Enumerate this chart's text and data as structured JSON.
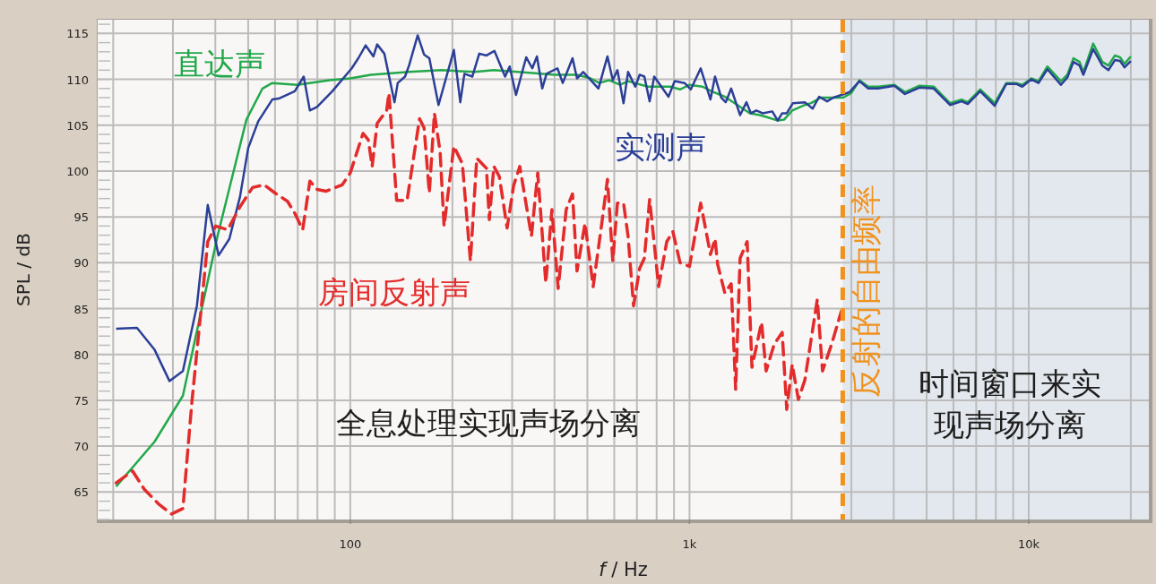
{
  "chart_data": {
    "type": "line",
    "xlabel": "*f* / Hz",
    "ylabel": "SPL / dB",
    "log": "x",
    "grid": true,
    "xlim": [
      18,
      22600
    ],
    "ylim": [
      62,
      116.5
    ],
    "xticks": [
      {
        "value": 100,
        "label": "100"
      },
      {
        "value": 1000,
        "label": "1k"
      },
      {
        "value": 10000,
        "label": "10k"
      }
    ],
    "yticks": [
      65,
      70,
      75,
      80,
      85,
      90,
      95,
      100,
      105,
      110,
      115
    ],
    "bands": [
      {
        "axis": "x",
        "from": 2830,
        "to": 22600,
        "color": "#e3e8ee"
      }
    ],
    "ref_lines": [
      {
        "axis": "x",
        "value": 2830,
        "label": "反射的自由频率",
        "color": "#f0921e",
        "line_style": "dashed"
      }
    ],
    "annotations": [
      "全息处理实现声场分离",
      "时间窗口来实现声场分离"
    ],
    "series": [
      {
        "name": "直达声",
        "color": "#22a84a",
        "line_style": "solid",
        "x": [
          20.4,
          23.7,
          26.5,
          32.1,
          40.6,
          49.4,
          55.1,
          58.9,
          69.8,
          86.9,
          100,
          115,
          149,
          186,
          233,
          265,
          344,
          400,
          466,
          511,
          542,
          580,
          624,
          659,
          754,
          877,
          938,
          1000,
          1092,
          1161,
          1271,
          1410,
          1507,
          1611,
          1682,
          1820,
          1900,
          2008,
          2188,
          2281,
          2438,
          2590,
          2838,
          2999,
          3170,
          3365,
          3597,
          4018,
          4315,
          4764,
          5248,
          5861,
          6339,
          6612,
          7194,
          7937,
          8590,
          9183,
          9572,
          10180,
          10690,
          11350,
          12440,
          13000,
          13550,
          14130,
          14490,
          15490,
          16480,
          17180,
          17950,
          18590,
          19170,
          20000
        ],
        "values": [
          65.6,
          68.4,
          70.5,
          75.5,
          92.9,
          105.6,
          109,
          109.6,
          109.4,
          109.9,
          110.1,
          110.5,
          110.8,
          111,
          110.8,
          111,
          110.7,
          110.5,
          110.5,
          110.1,
          109.6,
          109.9,
          109.4,
          109.8,
          109.2,
          109.2,
          108.9,
          109.4,
          109.2,
          108.7,
          108.1,
          107,
          106.3,
          106.1,
          105.9,
          105.5,
          105.6,
          106.6,
          107.2,
          107.4,
          108,
          108,
          108,
          108.5,
          109.9,
          109.2,
          109.2,
          109.4,
          108.6,
          109.3,
          109.2,
          107.4,
          107.8,
          107.5,
          108.9,
          107.4,
          109.6,
          109.6,
          109.4,
          110.1,
          109.8,
          111.4,
          109.8,
          110.5,
          112.3,
          111.9,
          110.8,
          113.9,
          111.9,
          111.5,
          112.6,
          112.4,
          111.7,
          112.5
        ]
      },
      {
        "name": "实测声",
        "color": "#2b3f97",
        "line_style": "solid",
        "x": [
          20.4,
          23.5,
          26.5,
          29.3,
          32.1,
          35.3,
          38.0,
          40.9,
          44.0,
          47.3,
          50.0,
          53.5,
          58.9,
          61.5,
          68.6,
          72.9,
          76.0,
          79.8,
          88.5,
          101,
          105.6,
          111,
          117,
          120,
          126,
          135,
          138,
          145,
          149,
          158,
          165,
          171,
          182,
          202,
          211,
          217,
          229,
          240,
          252,
          266,
          286,
          295,
          308,
          330,
          344,
          355,
          368,
          379,
          408,
          423,
          452,
          466,
          486,
          539,
          573,
          594,
          613,
          639,
          659,
          692,
          713,
          736,
          763,
          787,
          867,
          904,
          967,
          1009,
          1079,
          1153,
          1189,
          1241,
          1279,
          1327,
          1410,
          1472,
          1517,
          1574,
          1642,
          1754,
          1820,
          1876,
          1935,
          2018,
          2188,
          2307,
          2410,
          2545,
          2655,
          2803,
          2963,
          3170,
          3365,
          3597,
          4018,
          4315,
          4764,
          5248,
          5861,
          6339,
          6612,
          7194,
          7937,
          8590,
          9183,
          9572,
          10180,
          10690,
          11350,
          12440,
          13000,
          13550,
          14130,
          14490,
          15490,
          16480,
          17180,
          17950,
          18590,
          19170,
          20000
        ],
        "values": [
          82.8,
          82.9,
          80.5,
          77.1,
          78.2,
          85.3,
          96.3,
          90.8,
          92.6,
          97.2,
          102.5,
          105.4,
          107.8,
          107.9,
          108.7,
          110.3,
          106.6,
          107,
          108.7,
          111.2,
          112.3,
          113.7,
          112.5,
          113.8,
          112.8,
          107.5,
          109.6,
          110.3,
          111.5,
          114.8,
          112.7,
          112.3,
          107.2,
          113.2,
          107.5,
          110.6,
          110.3,
          112.8,
          112.6,
          113.1,
          110.3,
          111.4,
          108.3,
          112.4,
          111.2,
          112.5,
          109,
          110.6,
          111.2,
          109.6,
          112.3,
          110.1,
          110.8,
          109,
          112.5,
          109.9,
          111,
          107.4,
          110.8,
          109.2,
          110.5,
          110.3,
          107.6,
          110.3,
          108.1,
          109.8,
          109.6,
          108.9,
          111.2,
          107.8,
          110.3,
          108,
          107.5,
          109,
          106.1,
          107.5,
          106.3,
          106.6,
          106.3,
          106.5,
          105.5,
          106.3,
          106.3,
          107.4,
          107.5,
          106.8,
          108.1,
          107.6,
          108,
          108.3,
          108.6,
          109.8,
          109,
          109,
          109.3,
          108.4,
          109.1,
          109,
          107.2,
          107.6,
          107.3,
          108.7,
          107.1,
          109.5,
          109.5,
          109.2,
          110,
          109.6,
          111.1,
          109.4,
          110.2,
          111.9,
          111.5,
          110.5,
          113.3,
          111.5,
          111,
          112.1,
          112,
          111.3,
          112
        ]
      },
      {
        "name": "房间反射声",
        "color": "#e32b2b",
        "line_style": "dashed",
        "x": [
          20.4,
          22.8,
          24.7,
          27.2,
          29.7,
          32.1,
          34.1,
          36.0,
          38.0,
          40.1,
          43.5,
          47.3,
          51.5,
          55.7,
          60.0,
          65.3,
          68.6,
          72.4,
          76.0,
          79.8,
          84.9,
          94.7,
          100,
          109,
          113,
          116,
          120,
          128,
          130,
          137,
          147,
          153,
          160,
          165,
          171,
          177,
          184,
          189,
          202,
          214,
          226,
          236,
          252,
          257,
          265,
          275,
          290,
          303,
          316,
          342,
          357,
          377,
          393,
          410,
          433,
          452,
          466,
          492,
          520,
          550,
          573,
          594,
          613,
          639,
          659,
          684,
          713,
          736,
          763,
          811,
          857,
          893,
          938,
          1000,
          1079,
          1153,
          1189,
          1211,
          1271,
          1327,
          1368,
          1410,
          1479,
          1528,
          1631,
          1682,
          1777,
          1876,
          1935,
          2008,
          2094,
          2188,
          2381,
          2467,
          2623,
          2803
        ],
        "values": [
          66,
          67.3,
          65.3,
          63.7,
          62.6,
          63.2,
          74.7,
          83.5,
          92.3,
          94,
          93.6,
          96.1,
          98.2,
          98.5,
          97.6,
          96.7,
          95.4,
          93.6,
          98.9,
          98,
          97.8,
          98.5,
          99.8,
          104.1,
          103.4,
          100.5,
          105.2,
          106.6,
          108.5,
          96.8,
          96.8,
          101,
          105.7,
          104.7,
          97.6,
          106.3,
          102.1,
          94,
          102.7,
          100.8,
          90.2,
          101.4,
          100.3,
          94.7,
          100.5,
          99.4,
          93.8,
          98.4,
          100.5,
          92.9,
          99.8,
          87.8,
          95.8,
          87.2,
          95.8,
          97.5,
          89.1,
          94.3,
          87.4,
          94,
          99.1,
          90.2,
          96.5,
          96.5,
          92.9,
          85.3,
          89.4,
          90.5,
          96.9,
          87.4,
          92.3,
          93.4,
          90,
          89.6,
          96.5,
          90.9,
          92.6,
          89.8,
          86.7,
          87.7,
          76.2,
          90.5,
          92.3,
          78.6,
          83.5,
          78.2,
          81.1,
          82.4,
          74,
          78.9,
          75.1,
          77.2,
          86,
          78.2,
          81.1,
          84.7
        ]
      }
    ]
  }
}
